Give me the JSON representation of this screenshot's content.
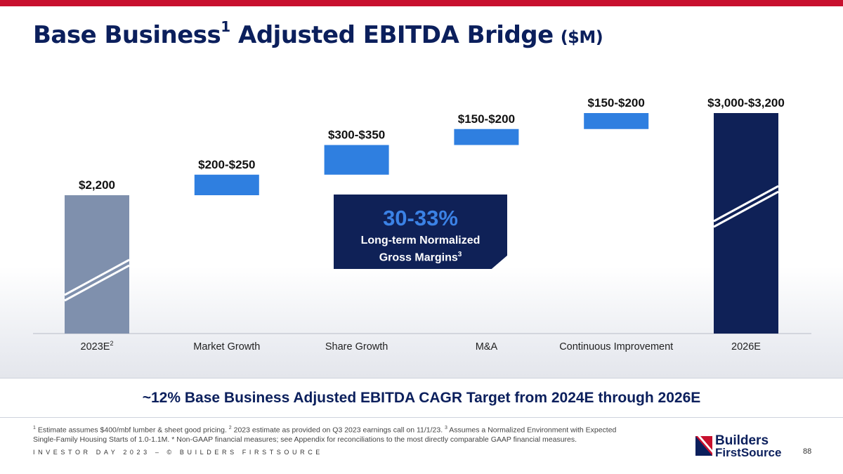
{
  "title": {
    "main": "Base Business",
    "sup": "1",
    "rest": "Adjusted EBITDA Bridge",
    "unit": "($M)"
  },
  "chart_data": {
    "type": "bar",
    "subtype": "waterfall",
    "categories": [
      "2023E",
      "Market Growth",
      "Share Growth",
      "M&A",
      "Continuous Improvement",
      "2026E"
    ],
    "category_superscripts": [
      "2",
      "",
      "",
      "",
      "",
      ""
    ],
    "bars": [
      {
        "kind": "total",
        "start": 0,
        "end": 2200,
        "label": "$2,200",
        "color": "#7f90ad"
      },
      {
        "kind": "increment",
        "start": 2200,
        "end": 2425,
        "label": "$200-$250",
        "color": "#2f7fe0"
      },
      {
        "kind": "increment",
        "start": 2425,
        "end": 2750,
        "label": "$300-$350",
        "color": "#2f7fe0"
      },
      {
        "kind": "increment",
        "start": 2750,
        "end": 2925,
        "label": "$150-$200",
        "color": "#2f7fe0"
      },
      {
        "kind": "increment",
        "start": 2925,
        "end": 3100,
        "label": "$150-$200",
        "color": "#2f7fe0"
      },
      {
        "kind": "total",
        "start": 0,
        "end": 3100,
        "label": "$3,000-$3,200",
        "color": "#0f2157"
      }
    ],
    "axis_break_on_totals": true
  },
  "callout": {
    "value": "30-33%",
    "label": "Long-term Normalized Gross Margins",
    "sup": "3"
  },
  "cagr": "~12% Base Business Adjusted EBITDA CAGR Target from 2024E through 2026E",
  "footnotes": {
    "n1": "1",
    "t1": " Estimate assumes $400/mbf lumber & sheet good pricing. ",
    "n2": "2",
    "t2": " 2023 estimate as provided on Q3 2023 earnings call on 11/1/23. ",
    "n3": "3",
    "t3": " Assumes a Normalized Environment with Expected Single-Family Housing Starts of 1.0-1.1M. * Non-GAAP financial measures; see Appendix for reconciliations to the most directly comparable GAAP financial measures."
  },
  "footer": {
    "event": "INVESTOR DAY 2023 – © BUILDERS FIRSTSOURCE",
    "page": "88"
  },
  "logo": {
    "line1": "Builders",
    "line2": "FirstSource"
  }
}
